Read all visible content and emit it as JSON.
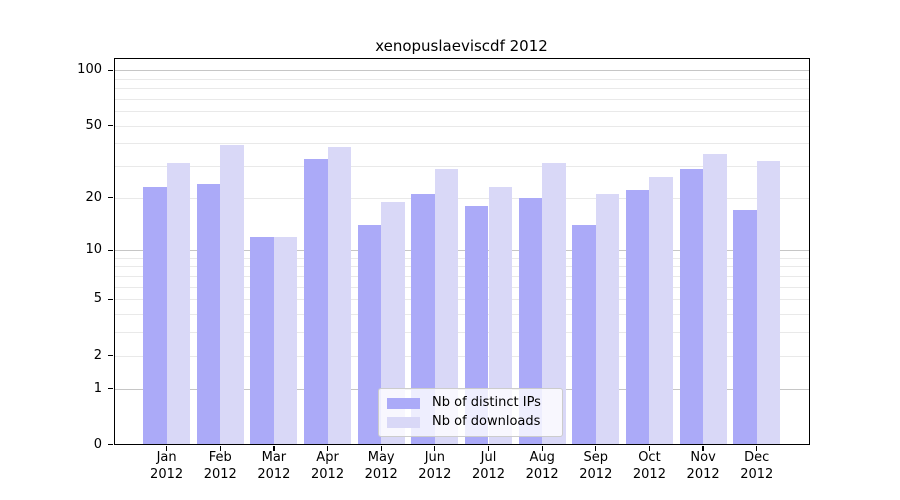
{
  "chart_data": {
    "type": "bar",
    "title": "xenopuslaeviscdf 2012",
    "categories": [
      "Jan 2012",
      "Feb 2012",
      "Mar 2012",
      "Apr 2012",
      "May 2012",
      "Jun 2012",
      "Jul 2012",
      "Aug 2012",
      "Sep 2012",
      "Oct 2012",
      "Nov 2012",
      "Dec 2012"
    ],
    "series": [
      {
        "name": "Nb of distinct IPs",
        "color": "#abaaf8",
        "values": [
          23,
          24,
          12,
          33,
          14,
          21,
          18,
          20,
          14,
          22,
          29,
          17
        ]
      },
      {
        "name": "Nb of downloads",
        "color": "#d9d8f7",
        "values": [
          31,
          39,
          12,
          38,
          19,
          29,
          23,
          31,
          21,
          26,
          35,
          32
        ]
      }
    ],
    "xlabel": "",
    "ylabel": "",
    "yscale": "log10(1+y)",
    "ylim": [
      0,
      117
    ],
    "yticks": [
      0,
      1,
      2,
      5,
      10,
      20,
      50,
      100
    ],
    "major_gridlines": [
      1,
      10,
      100
    ],
    "minor_gridlines": [
      2,
      3,
      4,
      5,
      6,
      7,
      8,
      9,
      20,
      30,
      40,
      50,
      60,
      70,
      80,
      90
    ],
    "grid": true,
    "legend_position": "lower center"
  },
  "colors": {
    "figure_background": "#ffffff",
    "axis": "#000000",
    "text": "#000000",
    "major_grid": "#c6c6c6",
    "minor_grid": "#e9e9e9",
    "legend_border": "#cccccc",
    "legend_background": "rgba(255,255,255,0.8)"
  }
}
